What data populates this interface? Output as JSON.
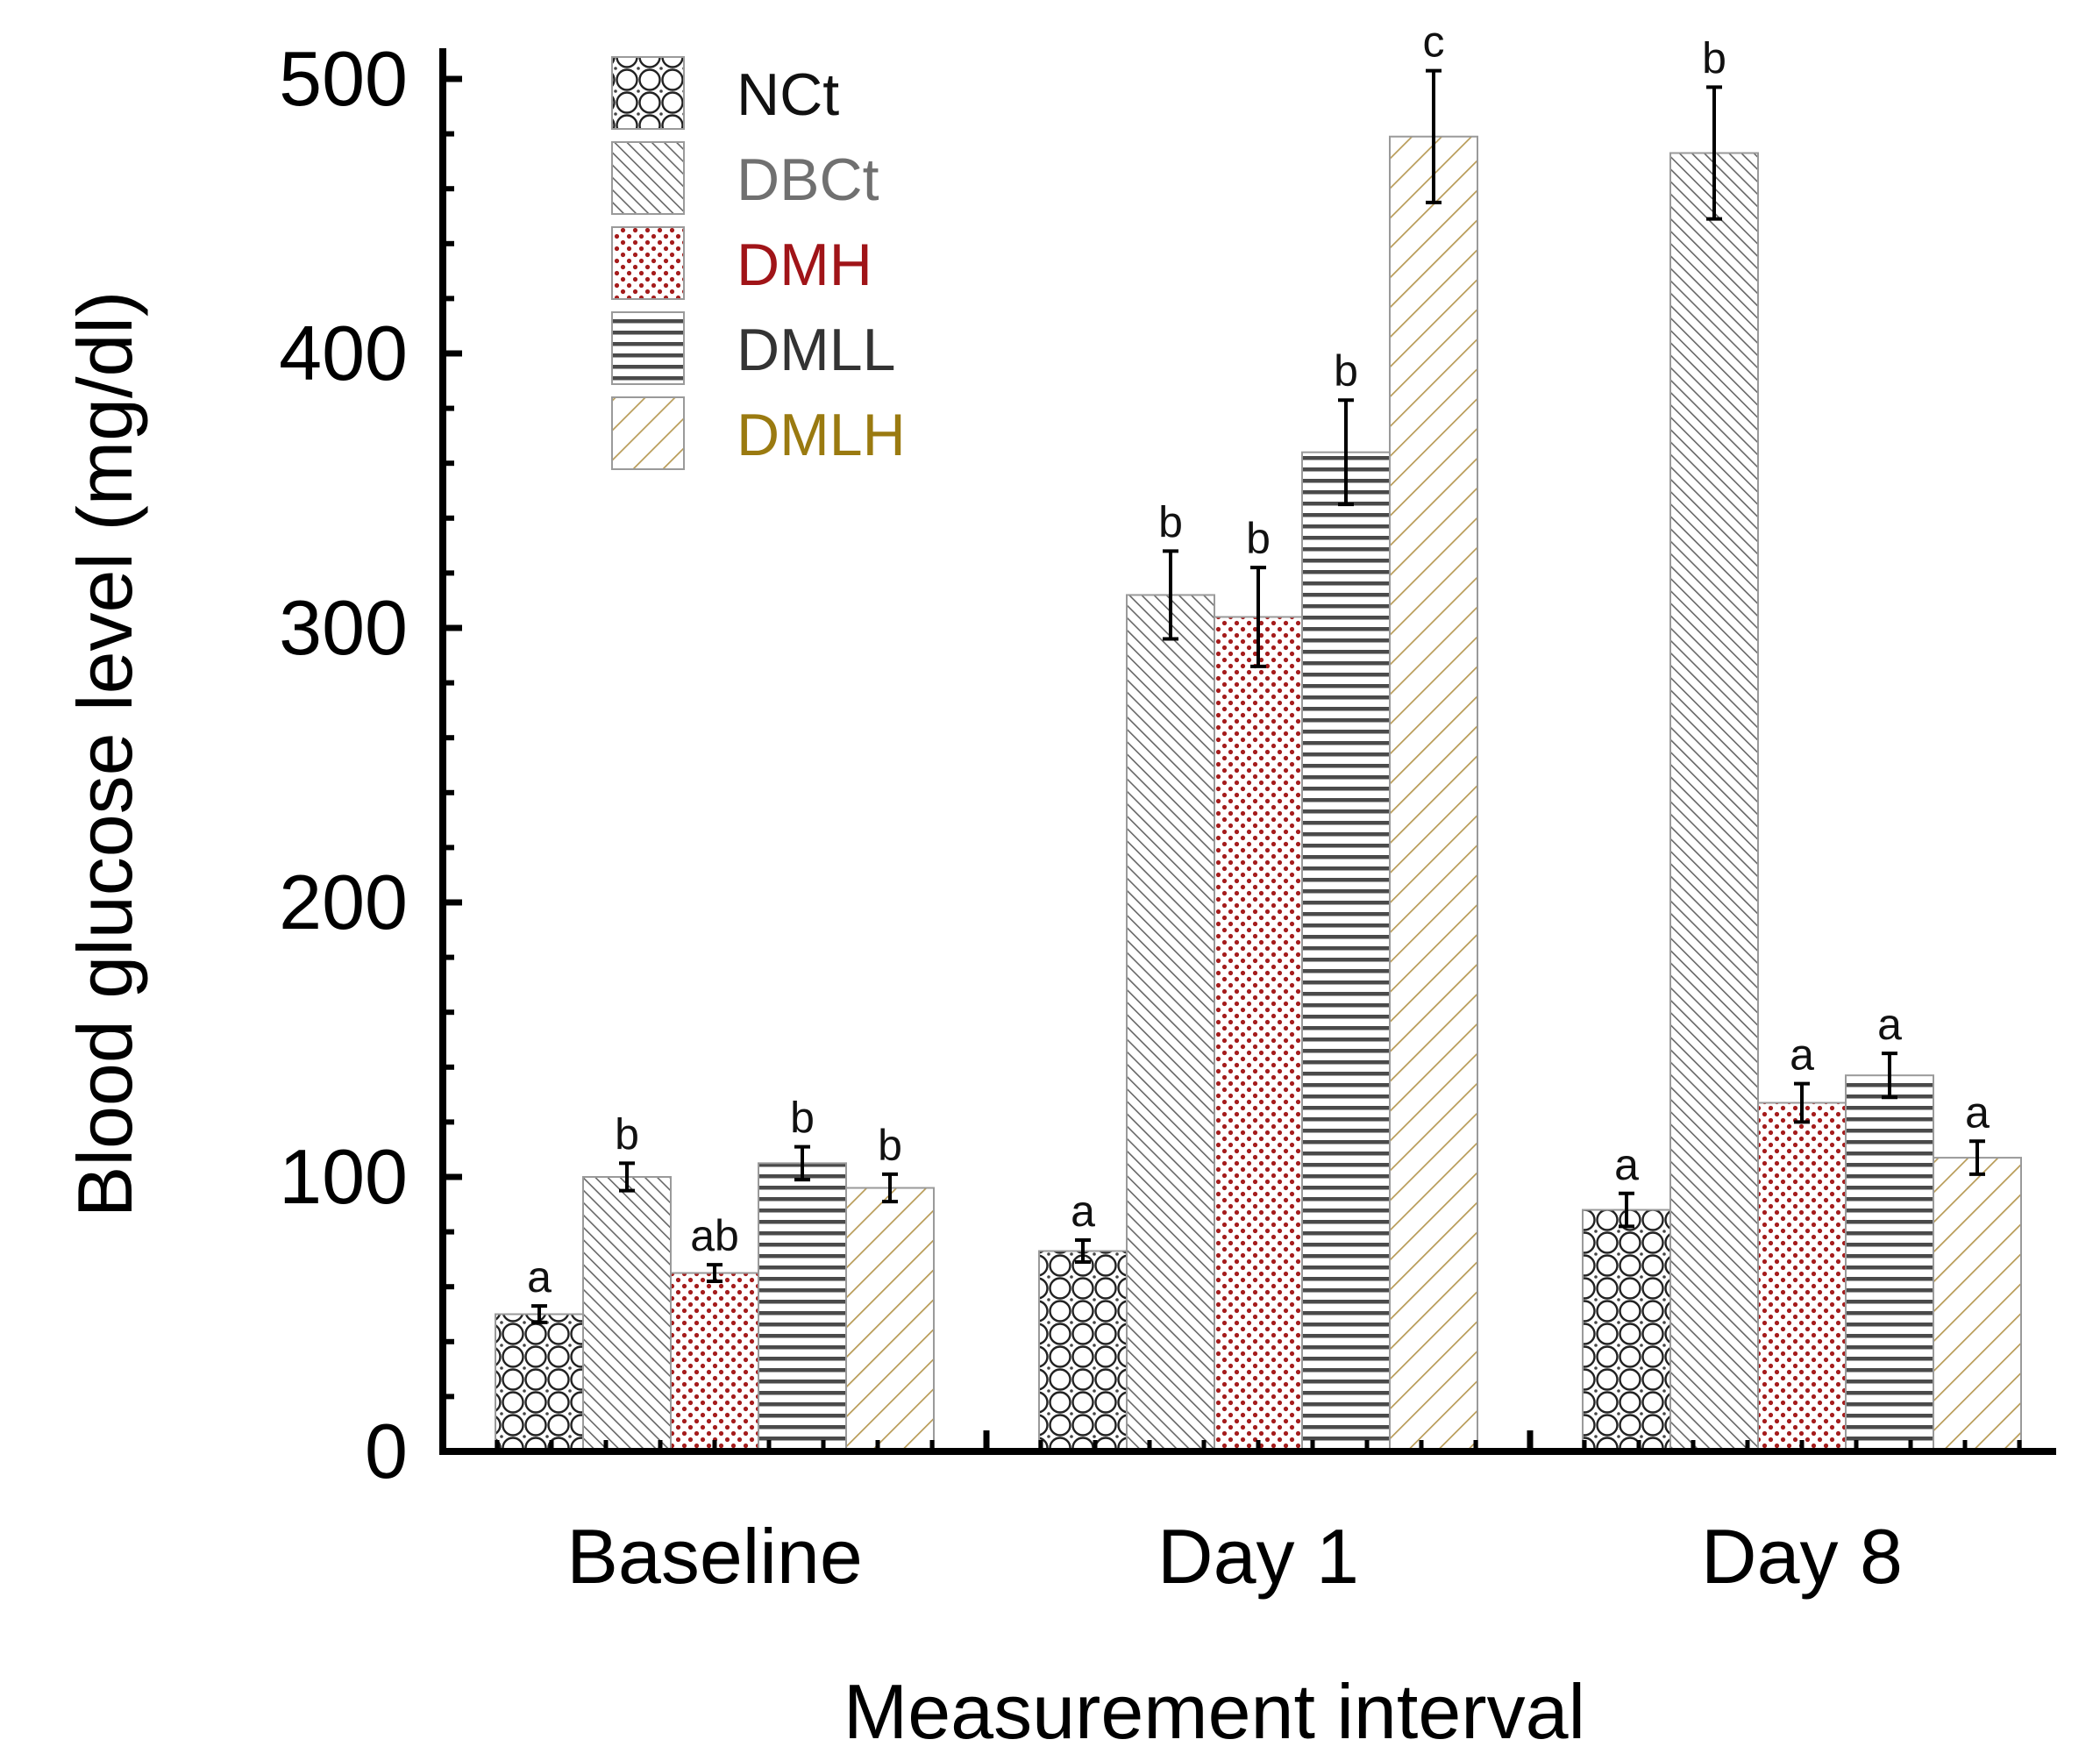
{
  "chart_data": {
    "type": "bar",
    "title": "",
    "xlabel": "Measurement interval",
    "ylabel": "Blood glucose level (mg/dl)",
    "ylim": [
      0,
      500
    ],
    "yticks": [
      "0",
      "100",
      "200",
      "300",
      "400",
      "500"
    ],
    "categories": [
      "Baseline",
      "Day 1",
      "Day 8"
    ],
    "legend_position": "top-left",
    "series": [
      {
        "name": "NCt",
        "label_color": "#111111",
        "pattern": "circles",
        "values": [
          50,
          73,
          88
        ],
        "errors": [
          3,
          4,
          6
        ],
        "significance": [
          "a",
          "a",
          "a"
        ]
      },
      {
        "name": "DBCt",
        "label_color": "#707070",
        "pattern": "back-diagonal",
        "values": [
          100,
          312,
          473
        ],
        "errors": [
          5,
          16,
          24
        ],
        "significance": [
          "b",
          "b",
          "b"
        ]
      },
      {
        "name": "DMH",
        "label_color": "#a01418",
        "pattern": "red-dots",
        "values": [
          65,
          304,
          127
        ],
        "errors": [
          3,
          18,
          7
        ],
        "significance": [
          "ab",
          "b",
          "a"
        ]
      },
      {
        "name": "DMLL",
        "label_color": "#333333",
        "pattern": "horizontal-lines",
        "values": [
          105,
          364,
          137
        ],
        "errors": [
          6,
          19,
          8
        ],
        "significance": [
          "b",
          "b",
          "a"
        ]
      },
      {
        "name": "DMLH",
        "label_color": "#9a7a10",
        "pattern": "gold-diagonal",
        "values": [
          96,
          479,
          107
        ],
        "errors": [
          5,
          24,
          6
        ],
        "significance": [
          "b",
          "c",
          "a"
        ]
      }
    ]
  }
}
